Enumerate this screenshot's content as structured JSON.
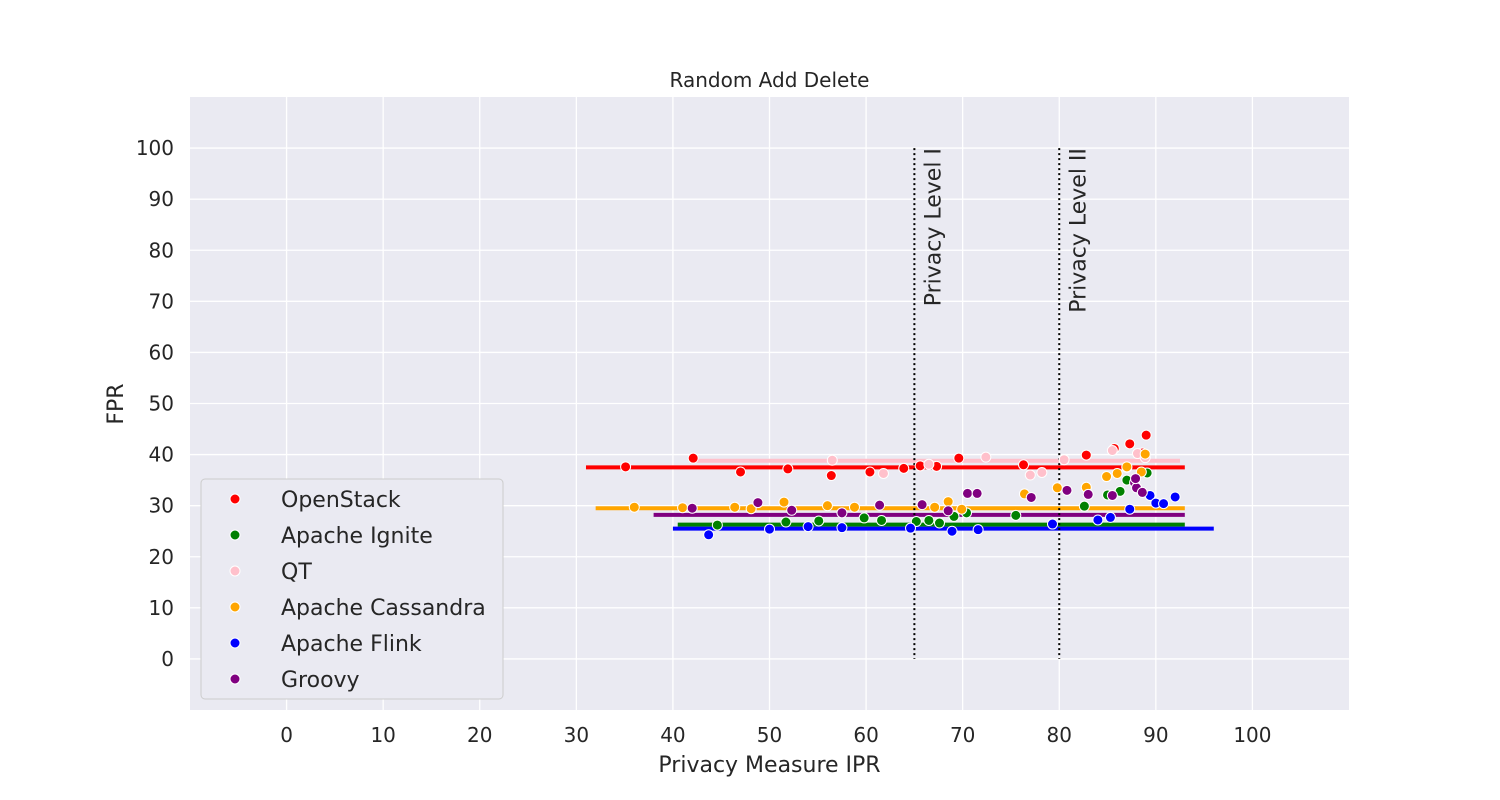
{
  "chart_data": {
    "type": "scatter",
    "title": "Random Add Delete",
    "xlabel": "Privacy Measure IPR",
    "ylabel": "FPR",
    "xlim": [
      -10,
      110
    ],
    "ylim": [
      -10,
      110
    ],
    "xticks": [
      0,
      10,
      20,
      30,
      40,
      50,
      60,
      70,
      80,
      90,
      100
    ],
    "yticks": [
      0,
      10,
      20,
      30,
      40,
      50,
      60,
      70,
      80,
      90,
      100
    ],
    "grid": true,
    "legend_position": "lower-left",
    "annotations": [
      {
        "label": "Privacy Level I",
        "x": 65,
        "y_range": [
          0,
          100
        ]
      },
      {
        "label": "Privacy Level II",
        "x": 80,
        "y_range": [
          0,
          100
        ]
      }
    ],
    "series": [
      {
        "name": "OpenStack",
        "color": "#ff0000",
        "mean_line": {
          "y": 37.5,
          "x_range": [
            31,
            93
          ]
        },
        "points": [
          [
            35.1,
            37.6
          ],
          [
            42.1,
            39.3
          ],
          [
            47.0,
            36.6
          ],
          [
            51.9,
            37.2
          ],
          [
            56.4,
            35.9
          ],
          [
            60.4,
            36.6
          ],
          [
            63.9,
            37.3
          ],
          [
            65.6,
            37.8
          ],
          [
            67.3,
            37.7
          ],
          [
            69.6,
            39.3
          ],
          [
            76.3,
            38.0
          ],
          [
            82.8,
            39.9
          ],
          [
            85.7,
            41.2
          ],
          [
            87.3,
            42.1
          ],
          [
            88.6,
            40.3
          ],
          [
            89.0,
            43.8
          ],
          [
            87.0,
            37.5
          ]
        ]
      },
      {
        "name": "Apache Ignite",
        "color": "#008000",
        "mean_line": {
          "y": 26.3,
          "x_range": [
            40.5,
            93
          ]
        },
        "points": [
          [
            44.6,
            26.2
          ],
          [
            51.7,
            26.8
          ],
          [
            55.1,
            27.0
          ],
          [
            59.8,
            27.6
          ],
          [
            61.6,
            27.1
          ],
          [
            65.2,
            26.9
          ],
          [
            66.5,
            27.1
          ],
          [
            67.6,
            26.6
          ],
          [
            69.1,
            27.9
          ],
          [
            70.4,
            28.6
          ],
          [
            75.5,
            28.1
          ],
          [
            82.6,
            29.9
          ],
          [
            85.0,
            32.1
          ],
          [
            86.3,
            32.8
          ],
          [
            87.0,
            35.0
          ],
          [
            89.1,
            36.4
          ]
        ]
      },
      {
        "name": "QT",
        "color": "#ffc0cb",
        "mean_line": {
          "y": 38.8,
          "x_range": [
            42,
            92.5
          ]
        },
        "points": [
          [
            56.5,
            38.9
          ],
          [
            61.8,
            36.3
          ],
          [
            66.5,
            38.1
          ],
          [
            72.4,
            39.5
          ],
          [
            77.0,
            36.0
          ],
          [
            78.2,
            36.5
          ],
          [
            80.5,
            39.0
          ],
          [
            85.5,
            40.8
          ],
          [
            88.1,
            40.2
          ],
          [
            88.9,
            39.4
          ]
        ]
      },
      {
        "name": "Apache Cassandra",
        "color": "#ffa500",
        "mean_line": {
          "y": 29.5,
          "x_range": [
            32,
            93
          ]
        },
        "points": [
          [
            36.0,
            29.7
          ],
          [
            41.0,
            29.6
          ],
          [
            46.4,
            29.7
          ],
          [
            48.1,
            29.4
          ],
          [
            51.5,
            30.7
          ],
          [
            56.0,
            30.0
          ],
          [
            58.8,
            29.7
          ],
          [
            67.1,
            29.7
          ],
          [
            68.5,
            30.8
          ],
          [
            69.9,
            29.3
          ],
          [
            76.4,
            32.3
          ],
          [
            79.8,
            33.5
          ],
          [
            82.8,
            33.6
          ],
          [
            84.9,
            35.7
          ],
          [
            86.0,
            36.3
          ],
          [
            87.0,
            37.6
          ],
          [
            88.5,
            36.6
          ],
          [
            88.9,
            40.1
          ]
        ]
      },
      {
        "name": "Apache Flink",
        "color": "#0000ff",
        "mean_line": {
          "y": 25.5,
          "x_range": [
            40,
            96
          ]
        },
        "points": [
          [
            43.7,
            24.3
          ],
          [
            50.0,
            25.4
          ],
          [
            54.0,
            25.9
          ],
          [
            57.5,
            25.7
          ],
          [
            64.6,
            25.6
          ],
          [
            68.9,
            25.0
          ],
          [
            71.6,
            25.3
          ],
          [
            79.3,
            26.4
          ],
          [
            84.0,
            27.2
          ],
          [
            85.3,
            27.7
          ],
          [
            87.3,
            29.3
          ],
          [
            89.4,
            32.0
          ],
          [
            90.0,
            30.5
          ],
          [
            90.8,
            30.4
          ],
          [
            92.0,
            31.7
          ],
          [
            88.0,
            33.5
          ]
        ]
      },
      {
        "name": "Groovy",
        "color": "#800080",
        "mean_line": {
          "y": 28.2,
          "x_range": [
            38,
            93
          ]
        },
        "points": [
          [
            42.0,
            29.5
          ],
          [
            48.8,
            30.6
          ],
          [
            52.3,
            29.1
          ],
          [
            57.5,
            28.6
          ],
          [
            61.4,
            30.1
          ],
          [
            65.8,
            30.2
          ],
          [
            68.5,
            29.0
          ],
          [
            70.5,
            32.4
          ],
          [
            71.5,
            32.4
          ],
          [
            77.1,
            31.6
          ],
          [
            80.8,
            33.0
          ],
          [
            83.0,
            32.2
          ],
          [
            85.5,
            32.0
          ],
          [
            87.8,
            34.5
          ],
          [
            88.0,
            33.5
          ],
          [
            88.6,
            32.6
          ],
          [
            87.9,
            35.3
          ]
        ]
      }
    ]
  }
}
